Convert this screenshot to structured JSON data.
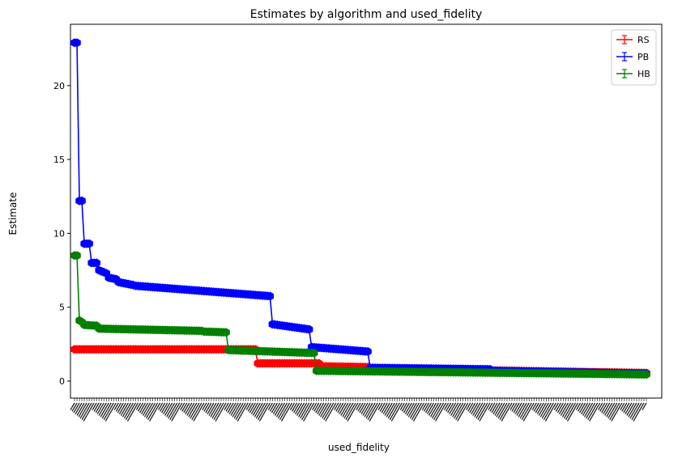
{
  "chart_data": {
    "type": "line",
    "title": "Estimates by algorithm and used_fidelity",
    "xlabel": "used_fidelity",
    "ylabel": "Estimate",
    "ylim": [
      -1.15,
      24.15
    ],
    "yticks": [
      0,
      5,
      10,
      15,
      20
    ],
    "grid": false,
    "legend_position": "top-right",
    "x_categories_count": 235,
    "series": [
      {
        "name": "RS",
        "color": "#ff0000",
        "segments": [
          {
            "from": 0,
            "to": 74,
            "start": 2.15,
            "end": 2.15
          },
          {
            "from": 75,
            "to": 100,
            "start": 1.2,
            "end": 1.2
          },
          {
            "from": 101,
            "to": 120,
            "start": 1.0,
            "end": 0.95
          },
          {
            "from": 121,
            "to": 234,
            "start": 0.85,
            "end": 0.55
          }
        ]
      },
      {
        "name": "PB",
        "color": "#0000ff",
        "segments": [
          {
            "from": 0,
            "to": 1,
            "start": 22.9,
            "end": 22.9
          },
          {
            "from": 2,
            "to": 3,
            "start": 12.2,
            "end": 12.2
          },
          {
            "from": 4,
            "to": 6,
            "start": 9.3,
            "end": 9.3
          },
          {
            "from": 7,
            "to": 9,
            "start": 8.0,
            "end": 8.0
          },
          {
            "from": 10,
            "to": 13,
            "start": 7.5,
            "end": 7.3
          },
          {
            "from": 14,
            "to": 17,
            "start": 7.0,
            "end": 6.9
          },
          {
            "from": 18,
            "to": 24,
            "start": 6.7,
            "end": 6.5
          },
          {
            "from": 25,
            "to": 80,
            "start": 6.45,
            "end": 5.75
          },
          {
            "from": 81,
            "to": 96,
            "start": 3.85,
            "end": 3.5
          },
          {
            "from": 97,
            "to": 120,
            "start": 2.3,
            "end": 2.0
          },
          {
            "from": 121,
            "to": 170,
            "start": 0.9,
            "end": 0.8
          },
          {
            "from": 171,
            "to": 234,
            "start": 0.7,
            "end": 0.5
          }
        ]
      },
      {
        "name": "HB",
        "color": "#008000",
        "segments": [
          {
            "from": 0,
            "to": 1,
            "start": 8.5,
            "end": 8.5
          },
          {
            "from": 2,
            "to": 3,
            "start": 4.1,
            "end": 4.0
          },
          {
            "from": 4,
            "to": 9,
            "start": 3.8,
            "end": 3.75
          },
          {
            "from": 10,
            "to": 52,
            "start": 3.55,
            "end": 3.4
          },
          {
            "from": 53,
            "to": 62,
            "start": 3.35,
            "end": 3.3
          },
          {
            "from": 63,
            "to": 98,
            "start": 2.1,
            "end": 1.9
          },
          {
            "from": 99,
            "to": 234,
            "start": 0.7,
            "end": 0.45
          }
        ]
      }
    ]
  }
}
